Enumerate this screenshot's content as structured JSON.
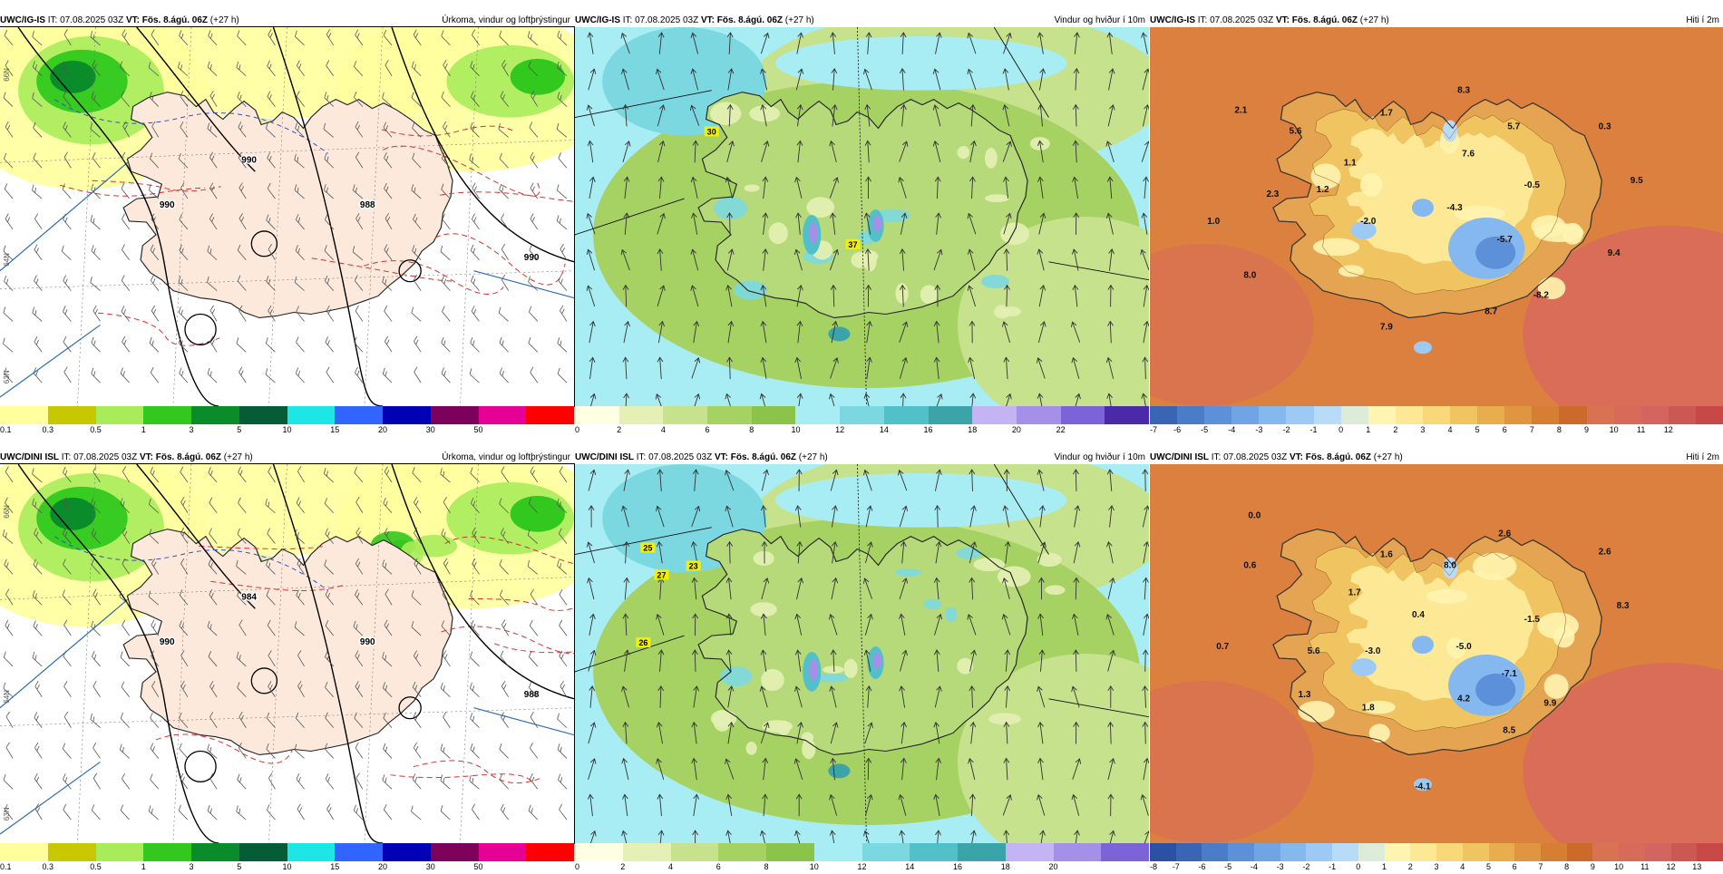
{
  "rows": [
    {
      "model": "UWC/IG-IS",
      "panels": [
        {
          "kind": "precip",
          "title": "Úrkoma, vindur og loftþrýstingur",
          "isobars": [
            "990",
            "988",
            "990",
            "990"
          ],
          "side_labels": [
            "66N",
            "64N",
            "63N"
          ],
          "colorbar": {
            "colors": [
              "#ffff9e",
              "#c8c800",
              "#a8ec5a",
              "#32c81e",
              "#0a8c2a",
              "#055c37",
              "#1ee6e6",
              "#3264ff",
              "#0000b4",
              "#7d005a",
              "#e60096",
              "#ff0000"
            ],
            "ticks": [
              "0.1",
              "0.3",
              "0.5",
              "1",
              "3",
              "5",
              "10",
              "15",
              "20",
              "30",
              "50"
            ]
          }
        },
        {
          "kind": "wind",
          "title": "Vindur og hviður í 10m",
          "gusts": [
            "30",
            "37"
          ],
          "colorbar": {
            "colors": [
              "#ffffe4",
              "#e4f0b4",
              "#c6e28c",
              "#a6d264",
              "#8cc34a",
              "#a8ecf4",
              "#7cd8e0",
              "#52c0c8",
              "#3aa4a8",
              "#c4b4f4",
              "#a490e8",
              "#7c64d8",
              "#4a2aa8"
            ],
            "ticks": [
              "0",
              "2",
              "4",
              "6",
              "8",
              "10",
              "12",
              "14",
              "16",
              "18",
              "20",
              "22"
            ]
          }
        },
        {
          "kind": "temp",
          "title": "Hiti í 2m",
          "temps": [
            "2.1",
            "5.6",
            "1.1",
            "2.3",
            "1.0",
            "1.2",
            "1.7",
            "8.3",
            "7.6",
            "5.7",
            "0.3",
            "-0.5",
            "9.5",
            "-2.0",
            "-4.3",
            "-5.7",
            "9.4",
            "8.0",
            "8.7",
            "-8.2",
            "7.9"
          ],
          "colorbar": {
            "colors": [
              "#3a64b4",
              "#4a7cc8",
              "#5c90d8",
              "#70a4e4",
              "#84b8ee",
              "#9ccaf4",
              "#b8dcf8",
              "#dcecd8",
              "#fff4b0",
              "#fde896",
              "#f8d878",
              "#f0c460",
              "#e8ae4e",
              "#e09640",
              "#d67e34",
              "#cc6a2c",
              "#d87250",
              "#d86a5a",
              "#d46460",
              "#cc5854",
              "#c84848"
            ],
            "ticks": [
              "-7",
              "-6",
              "-5",
              "-4",
              "-3",
              "-2",
              "-1",
              "0",
              "1",
              "2",
              "3",
              "4",
              "5",
              "6",
              "7",
              "8",
              "9",
              "10",
              "11",
              "12"
            ]
          }
        }
      ]
    },
    {
      "model": "UWC/DINI ISL",
      "panels": [
        {
          "kind": "precip",
          "title": "Úrkoma, vindur og loftþrýstingur",
          "isobars": [
            "990",
            "990",
            "988",
            "984"
          ],
          "side_labels": [
            "66N",
            "64N",
            "63N"
          ],
          "colorbar": {
            "colors": [
              "#ffff9e",
              "#c8c800",
              "#a8ec5a",
              "#32c81e",
              "#0a8c2a",
              "#055c37",
              "#1ee6e6",
              "#3264ff",
              "#0000b4",
              "#7d005a",
              "#e60096",
              "#ff0000"
            ],
            "ticks": [
              "0.1",
              "0.3",
              "0.5",
              "1",
              "3",
              "5",
              "10",
              "15",
              "20",
              "30",
              "50"
            ]
          }
        },
        {
          "kind": "wind",
          "title": "Vindur og hviður í 10m",
          "gusts": [
            "25",
            "27",
            "23",
            "26"
          ],
          "colorbar": {
            "colors": [
              "#ffffe4",
              "#e4f0b4",
              "#c6e28c",
              "#a6d264",
              "#8cc34a",
              "#a8ecf4",
              "#7cd8e0",
              "#52c0c8",
              "#3aa4a8",
              "#c4b4f4",
              "#a490e8",
              "#7c64d8"
            ],
            "ticks": [
              "0",
              "2",
              "4",
              "6",
              "8",
              "10",
              "12",
              "14",
              "16",
              "18",
              "20"
            ]
          }
        },
        {
          "kind": "temp",
          "title": "Hiti í 2m",
          "temps": [
            "0.0",
            "0.6",
            "1.6",
            "1.7",
            "8.0",
            "2.6",
            "2.6",
            "0.4",
            "8.3",
            "-1.5",
            "0.7",
            "5.6",
            "-3.0",
            "-5.0",
            "-7.1",
            "1.3",
            "1.8",
            "4.2",
            "9.9",
            "8.5",
            "-4.1"
          ],
          "colorbar": {
            "colors": [
              "#2c50a4",
              "#3a64b4",
              "#4a7cc8",
              "#5c90d8",
              "#70a4e4",
              "#84b8ee",
              "#9ccaf4",
              "#b8dcf8",
              "#dcecd8",
              "#fff4b0",
              "#fde896",
              "#f8d878",
              "#f0c460",
              "#e8ae4e",
              "#e09640",
              "#d67e34",
              "#cc6a2c",
              "#d87250",
              "#d86a5a",
              "#d46460",
              "#cc5854",
              "#c84848"
            ],
            "ticks": [
              "-8",
              "-7",
              "-6",
              "-5",
              "-4",
              "-3",
              "-2",
              "-1",
              "0",
              "1",
              "2",
              "3",
              "4",
              "5",
              "6",
              "7",
              "8",
              "9",
              "10",
              "11",
              "12",
              "13"
            ]
          }
        }
      ]
    }
  ],
  "init_label": "IT:",
  "init_time": "07.08.2025 03Z",
  "valid_label": "VT:",
  "valid_time": "Fös. 8.ágú. 06Z",
  "lead": "(+27 h)"
}
